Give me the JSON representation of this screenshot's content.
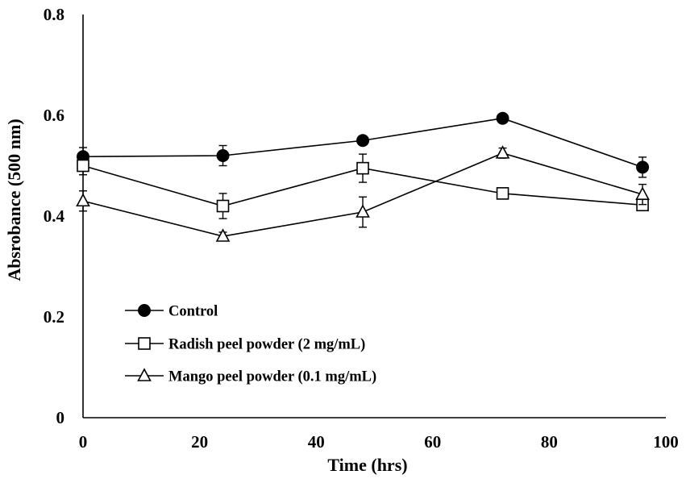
{
  "chart_data": {
    "type": "line",
    "title": "",
    "xlabel": "Time (hrs)",
    "ylabel": "Absrobance (500 nm)",
    "xlim": [
      0,
      100
    ],
    "ylim": [
      0,
      0.8
    ],
    "xticks": [
      0,
      20,
      40,
      60,
      80,
      100
    ],
    "yticks": [
      0,
      0.2,
      0.4,
      0.6,
      0.8
    ],
    "xtick_labels": [
      "0",
      "20",
      "40",
      "60",
      "80",
      "100"
    ],
    "ytick_labels": [
      "0",
      "0.2",
      "0.4",
      "0.6",
      "0.8"
    ],
    "grid": false,
    "legend_position": "bottom-left",
    "x": [
      0,
      24,
      48,
      72,
      96
    ],
    "series": [
      {
        "name": "Control",
        "marker": "filled-circle",
        "values": [
          0.518,
          0.52,
          0.55,
          0.594,
          0.497
        ],
        "errors": [
          0.018,
          0.02,
          0.008,
          0.006,
          0.02
        ]
      },
      {
        "name": "Radish peel powder (2 mg/mL)",
        "marker": "open-square",
        "values": [
          0.5,
          0.42,
          0.495,
          0.445,
          0.422
        ],
        "errors": [
          0.018,
          0.025,
          0.028,
          0.008,
          0.008
        ]
      },
      {
        "name": "Mango peel powder (0.1 mg/mL)",
        "marker": "open-triangle",
        "values": [
          0.43,
          0.36,
          0.408,
          0.525,
          0.443
        ],
        "errors": [
          0.02,
          0.008,
          0.03,
          0.01,
          0.02
        ]
      }
    ]
  }
}
